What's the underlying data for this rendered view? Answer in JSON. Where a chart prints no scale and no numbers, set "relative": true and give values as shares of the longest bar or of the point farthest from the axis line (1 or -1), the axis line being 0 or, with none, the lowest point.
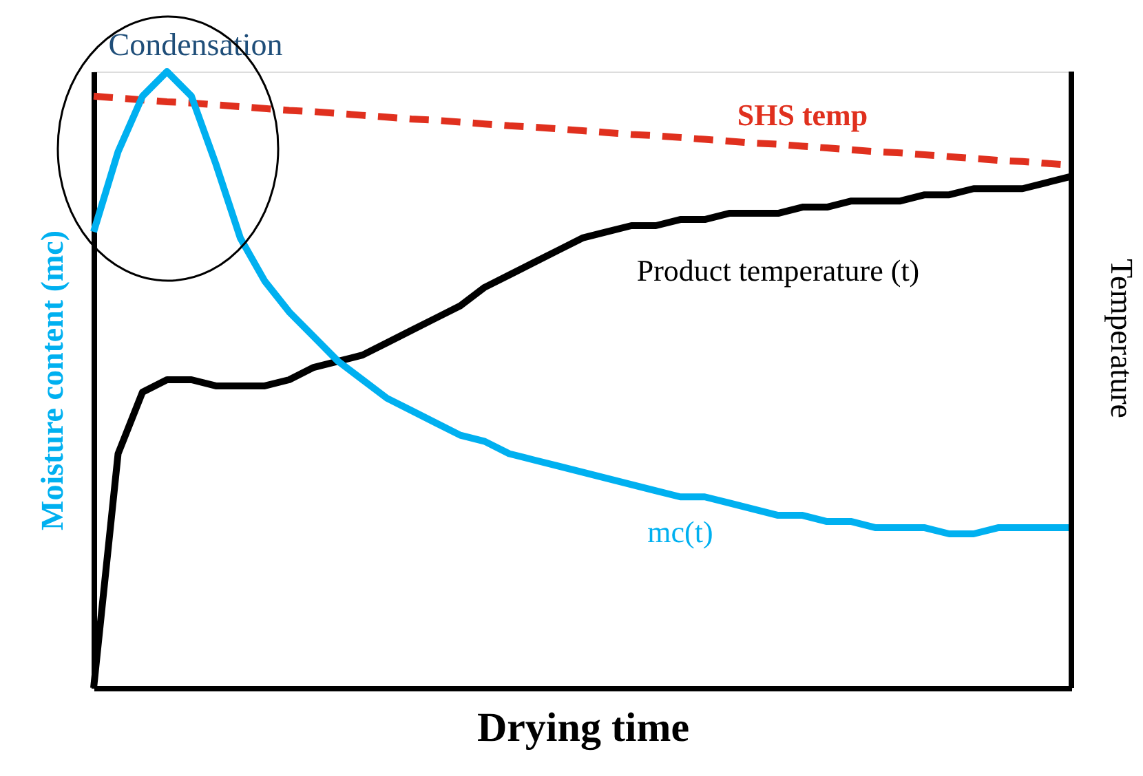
{
  "chart_data": {
    "type": "line",
    "relative": true,
    "xlabel": "Drying time",
    "ylabel": "Moisture content (mc)",
    "y2label": "Temperature",
    "categories": [
      null,
      null,
      null,
      null,
      null,
      null,
      null,
      null,
      null,
      null,
      null,
      null,
      null,
      null,
      null,
      null,
      null,
      null,
      null,
      null,
      null,
      null,
      null,
      null,
      null,
      null,
      null,
      null,
      null,
      null,
      null,
      null,
      null,
      null,
      null,
      null,
      null,
      null,
      null,
      null,
      null
    ],
    "series": [
      {
        "name": "SHS temp",
        "color": "#e0301e",
        "line_style": "dashed",
        "values": [
          0.96,
          0.957,
          0.954,
          0.951,
          0.949,
          0.946,
          0.943,
          0.94,
          0.937,
          0.935,
          0.932,
          0.929,
          0.926,
          0.923,
          0.921,
          0.918,
          0.915,
          0.912,
          0.91,
          0.907,
          0.904,
          0.901,
          0.898,
          0.896,
          0.893,
          0.89,
          0.887,
          0.884,
          0.882,
          0.879,
          0.876,
          0.873,
          0.87,
          0.868,
          0.865,
          0.862,
          0.859,
          0.856,
          0.854,
          0.851,
          0.848
        ]
      },
      {
        "name": "Product temperature (t)",
        "color": "#000000",
        "values": [
          0,
          0.38,
          0.48,
          0.5,
          0.5,
          0.49,
          0.49,
          0.49,
          0.5,
          0.52,
          0.53,
          0.54,
          0.56,
          0.58,
          0.6,
          0.62,
          0.65,
          0.67,
          0.69,
          0.71,
          0.73,
          0.74,
          0.75,
          0.75,
          0.76,
          0.76,
          0.77,
          0.77,
          0.77,
          0.78,
          0.78,
          0.79,
          0.79,
          0.79,
          0.8,
          0.8,
          0.81,
          0.81,
          0.81,
          0.82,
          0.83
        ]
      },
      {
        "name": "mc(t)",
        "color": "#00b0f0",
        "values": [
          0.74,
          0.87,
          0.96,
          1.0,
          0.96,
          0.85,
          0.73,
          0.66,
          0.61,
          0.57,
          0.53,
          0.5,
          0.47,
          0.45,
          0.43,
          0.41,
          0.4,
          0.38,
          0.37,
          0.36,
          0.35,
          0.34,
          0.33,
          0.32,
          0.31,
          0.31,
          0.3,
          0.29,
          0.28,
          0.28,
          0.27,
          0.27,
          0.26,
          0.26,
          0.26,
          0.25,
          0.25,
          0.26,
          0.26,
          0.26,
          0.26
        ]
      }
    ],
    "annotations": [
      "Condensation"
    ],
    "line_style": "solid",
    "legend": false,
    "grid": false
  }
}
